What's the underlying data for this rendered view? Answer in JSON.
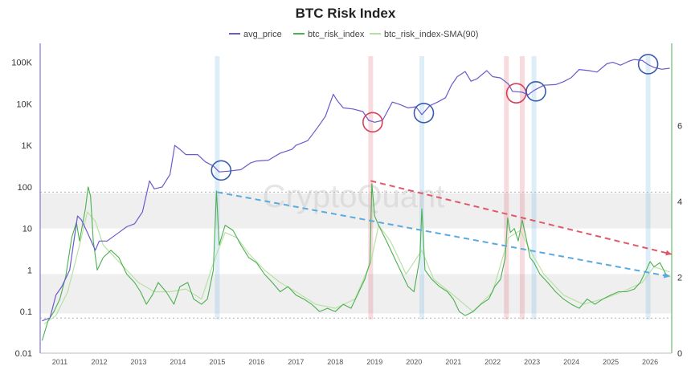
{
  "chart_data": {
    "type": "line",
    "title": "BTC Risk Index",
    "watermark": "CryptoQuant",
    "legend": [
      {
        "name": "avg_price",
        "color": "#6a5acd"
      },
      {
        "name": "btc_risk_index",
        "color": "#4caf50"
      },
      {
        "name": "btc_risk_index-SMA(90)",
        "color": "#b5dfa0"
      }
    ],
    "left_axis": {
      "scale": "log",
      "range": [
        0.01,
        200000
      ],
      "ticks": [
        "100K",
        "10K",
        "1K",
        "100",
        "10",
        "1",
        "0.1",
        "0.01"
      ],
      "tick_values": [
        100000,
        10000,
        1000,
        100,
        10,
        1,
        0.1,
        0.01
      ]
    },
    "right_axis": {
      "range": [
        0,
        8
      ],
      "ticks": [
        "6",
        "4",
        "2",
        "0"
      ],
      "tick_values": [
        6,
        4,
        2,
        0
      ]
    },
    "x_axis": {
      "range": [
        2010.5,
        2026.55
      ],
      "ticks": [
        "2011",
        "2012",
        "2013",
        "2014",
        "2015",
        "2016",
        "2017",
        "2018",
        "2019",
        "2020",
        "2021",
        "2022",
        "2023",
        "2024",
        "2025",
        "2026"
      ],
      "tick_values": [
        2011,
        2012,
        2013,
        2014,
        2015,
        2016,
        2017,
        2018,
        2019,
        2020,
        2021,
        2022,
        2023,
        2024,
        2025,
        2026
      ]
    },
    "bands": [
      {
        "from": 10,
        "to": 70
      },
      {
        "from": 0.09,
        "to": 0.8
      }
    ],
    "ref_lines": [
      75,
      0.07
    ],
    "vertical_highlights": [
      {
        "x": 2015.0,
        "color": "blue"
      },
      {
        "x": 2018.9,
        "color": "red"
      },
      {
        "x": 2020.2,
        "color": "blue"
      },
      {
        "x": 2022.35,
        "color": "red"
      },
      {
        "x": 2022.75,
        "color": "red"
      },
      {
        "x": 2023.05,
        "color": "blue"
      },
      {
        "x": 2025.95,
        "color": "blue"
      }
    ],
    "circles": [
      {
        "x": 2015.1,
        "y": 250,
        "color": "blue"
      },
      {
        "x": 2018.95,
        "y": 3600,
        "color": "red"
      },
      {
        "x": 2020.25,
        "y": 6000,
        "color": "blue"
      },
      {
        "x": 2022.6,
        "y": 18000,
        "color": "red"
      },
      {
        "x": 2023.1,
        "y": 20000,
        "color": "blue"
      },
      {
        "x": 2025.95,
        "y": 90000,
        "color": "blue"
      }
    ],
    "trend_lines": [
      {
        "color": "blue",
        "from": [
          2015.0,
          75
        ],
        "to": [
          2026.5,
          0.7
        ]
      },
      {
        "color": "red",
        "from": [
          2018.9,
          140
        ],
        "to": [
          2026.55,
          2.4
        ]
      }
    ],
    "series": [
      {
        "name": "avg_price",
        "axis": "left",
        "points": [
          [
            2010.55,
            0.06
          ],
          [
            2010.75,
            0.07
          ],
          [
            2010.9,
            0.25
          ],
          [
            2011.05,
            0.4
          ],
          [
            2011.25,
            1.0
          ],
          [
            2011.45,
            20
          ],
          [
            2011.55,
            16
          ],
          [
            2011.7,
            8
          ],
          [
            2011.9,
            3
          ],
          [
            2012.0,
            5
          ],
          [
            2012.2,
            5
          ],
          [
            2012.5,
            8
          ],
          [
            2012.7,
            11
          ],
          [
            2012.9,
            13
          ],
          [
            2013.1,
            25
          ],
          [
            2013.28,
            140
          ],
          [
            2013.4,
            90
          ],
          [
            2013.6,
            100
          ],
          [
            2013.8,
            200
          ],
          [
            2013.92,
            1000
          ],
          [
            2014.05,
            800
          ],
          [
            2014.2,
            600
          ],
          [
            2014.5,
            600
          ],
          [
            2014.7,
            400
          ],
          [
            2014.9,
            320
          ],
          [
            2015.05,
            230
          ],
          [
            2015.3,
            240
          ],
          [
            2015.6,
            260
          ],
          [
            2015.85,
            380
          ],
          [
            2016.0,
            420
          ],
          [
            2016.3,
            440
          ],
          [
            2016.6,
            650
          ],
          [
            2016.9,
            800
          ],
          [
            2017.0,
            1000
          ],
          [
            2017.3,
            1300
          ],
          [
            2017.55,
            2700
          ],
          [
            2017.75,
            5000
          ],
          [
            2017.95,
            17000
          ],
          [
            2018.05,
            12000
          ],
          [
            2018.2,
            8000
          ],
          [
            2018.45,
            7500
          ],
          [
            2018.7,
            6500
          ],
          [
            2018.85,
            4000
          ],
          [
            2019.0,
            3600
          ],
          [
            2019.2,
            4000
          ],
          [
            2019.45,
            11000
          ],
          [
            2019.6,
            10000
          ],
          [
            2019.85,
            8000
          ],
          [
            2020.05,
            8500
          ],
          [
            2020.2,
            5500
          ],
          [
            2020.4,
            9000
          ],
          [
            2020.6,
            11000
          ],
          [
            2020.8,
            14000
          ],
          [
            2020.95,
            28000
          ],
          [
            2021.1,
            45000
          ],
          [
            2021.3,
            60000
          ],
          [
            2021.45,
            35000
          ],
          [
            2021.6,
            40000
          ],
          [
            2021.85,
            63000
          ],
          [
            2022.0,
            45000
          ],
          [
            2022.2,
            42000
          ],
          [
            2022.4,
            30000
          ],
          [
            2022.5,
            20000
          ],
          [
            2022.75,
            19000
          ],
          [
            2022.9,
            16500
          ],
          [
            2023.05,
            21000
          ],
          [
            2023.3,
            28000
          ],
          [
            2023.6,
            29000
          ],
          [
            2023.8,
            34000
          ],
          [
            2024.0,
            43000
          ],
          [
            2024.2,
            67000
          ],
          [
            2024.45,
            63000
          ],
          [
            2024.65,
            58000
          ],
          [
            2024.9,
            92000
          ],
          [
            2025.05,
            100000
          ],
          [
            2025.25,
            85000
          ],
          [
            2025.45,
            105000
          ],
          [
            2025.6,
            117000
          ],
          [
            2025.8,
            110000
          ],
          [
            2025.95,
            88000
          ],
          [
            2026.1,
            75000
          ],
          [
            2026.3,
            68000
          ],
          [
            2026.5,
            72000
          ]
        ]
      },
      {
        "name": "btc_risk_index",
        "axis": "left",
        "points": [
          [
            2010.55,
            0.02
          ],
          [
            2010.7,
            0.06
          ],
          [
            2010.85,
            0.1
          ],
          [
            2011.0,
            0.2
          ],
          [
            2011.15,
            0.7
          ],
          [
            2011.3,
            6
          ],
          [
            2011.42,
            14
          ],
          [
            2011.5,
            5
          ],
          [
            2011.65,
            30
          ],
          [
            2011.72,
            100
          ],
          [
            2011.78,
            60
          ],
          [
            2011.85,
            5
          ],
          [
            2011.95,
            1.0
          ],
          [
            2012.1,
            2
          ],
          [
            2012.3,
            3
          ],
          [
            2012.5,
            2
          ],
          [
            2012.7,
            0.8
          ],
          [
            2012.9,
            0.5
          ],
          [
            2013.05,
            0.3
          ],
          [
            2013.2,
            0.15
          ],
          [
            2013.35,
            0.25
          ],
          [
            2013.5,
            0.5
          ],
          [
            2013.7,
            0.3
          ],
          [
            2013.9,
            0.15
          ],
          [
            2014.05,
            0.4
          ],
          [
            2014.25,
            0.5
          ],
          [
            2014.4,
            0.2
          ],
          [
            2014.6,
            0.15
          ],
          [
            2014.75,
            0.2
          ],
          [
            2014.9,
            1.0
          ],
          [
            2014.98,
            80
          ],
          [
            2015.05,
            4
          ],
          [
            2015.2,
            12
          ],
          [
            2015.4,
            9
          ],
          [
            2015.6,
            4
          ],
          [
            2015.8,
            2
          ],
          [
            2016.0,
            1.5
          ],
          [
            2016.2,
            0.8
          ],
          [
            2016.4,
            0.5
          ],
          [
            2016.6,
            0.3
          ],
          [
            2016.8,
            0.4
          ],
          [
            2017.0,
            0.25
          ],
          [
            2017.2,
            0.2
          ],
          [
            2017.4,
            0.15
          ],
          [
            2017.6,
            0.1
          ],
          [
            2017.8,
            0.12
          ],
          [
            2018.0,
            0.1
          ],
          [
            2018.2,
            0.15
          ],
          [
            2018.4,
            0.12
          ],
          [
            2018.6,
            0.3
          ],
          [
            2018.75,
            0.6
          ],
          [
            2018.88,
            1.5
          ],
          [
            2018.93,
            120
          ],
          [
            2019.0,
            20
          ],
          [
            2019.1,
            12
          ],
          [
            2019.3,
            5
          ],
          [
            2019.5,
            2
          ],
          [
            2019.7,
            0.8
          ],
          [
            2019.85,
            0.4
          ],
          [
            2020.0,
            0.3
          ],
          [
            2020.15,
            2
          ],
          [
            2020.2,
            30
          ],
          [
            2020.28,
            1
          ],
          [
            2020.45,
            0.6
          ],
          [
            2020.65,
            0.4
          ],
          [
            2020.85,
            0.3
          ],
          [
            2021.0,
            0.2
          ],
          [
            2021.15,
            0.1
          ],
          [
            2021.3,
            0.08
          ],
          [
            2021.5,
            0.1
          ],
          [
            2021.7,
            0.15
          ],
          [
            2021.9,
            0.2
          ],
          [
            2022.05,
            0.4
          ],
          [
            2022.2,
            0.6
          ],
          [
            2022.32,
            2
          ],
          [
            2022.38,
            18
          ],
          [
            2022.45,
            8
          ],
          [
            2022.55,
            10
          ],
          [
            2022.65,
            5
          ],
          [
            2022.75,
            16
          ],
          [
            2022.85,
            6
          ],
          [
            2022.95,
            2
          ],
          [
            2023.05,
            1.5
          ],
          [
            2023.2,
            0.8
          ],
          [
            2023.4,
            0.5
          ],
          [
            2023.6,
            0.3
          ],
          [
            2023.8,
            0.2
          ],
          [
            2024.0,
            0.15
          ],
          [
            2024.2,
            0.12
          ],
          [
            2024.4,
            0.2
          ],
          [
            2024.6,
            0.15
          ],
          [
            2024.8,
            0.2
          ],
          [
            2025.0,
            0.25
          ],
          [
            2025.2,
            0.3
          ],
          [
            2025.4,
            0.3
          ],
          [
            2025.6,
            0.35
          ],
          [
            2025.75,
            0.5
          ],
          [
            2025.9,
            1.0
          ],
          [
            2026.0,
            1.6
          ],
          [
            2026.1,
            1.2
          ],
          [
            2026.25,
            1.5
          ],
          [
            2026.4,
            0.8
          ],
          [
            2026.5,
            0.7
          ]
        ]
      },
      {
        "name": "btc_risk_index-SMA(90)",
        "axis": "left",
        "points": [
          [
            2010.6,
            0.05
          ],
          [
            2010.9,
            0.08
          ],
          [
            2011.2,
            0.3
          ],
          [
            2011.5,
            4
          ],
          [
            2011.7,
            25
          ],
          [
            2011.9,
            15
          ],
          [
            2012.1,
            4
          ],
          [
            2012.4,
            2
          ],
          [
            2012.7,
            1
          ],
          [
            2013.0,
            0.5
          ],
          [
            2013.4,
            0.3
          ],
          [
            2013.8,
            0.3
          ],
          [
            2014.2,
            0.35
          ],
          [
            2014.6,
            0.2
          ],
          [
            2014.95,
            2
          ],
          [
            2015.2,
            8
          ],
          [
            2015.5,
            6
          ],
          [
            2015.8,
            2.5
          ],
          [
            2016.2,
            1.0
          ],
          [
            2016.6,
            0.5
          ],
          [
            2017.0,
            0.3
          ],
          [
            2017.5,
            0.15
          ],
          [
            2018.0,
            0.12
          ],
          [
            2018.5,
            0.2
          ],
          [
            2018.9,
            1.5
          ],
          [
            2019.1,
            12
          ],
          [
            2019.4,
            5
          ],
          [
            2019.8,
            0.8
          ],
          [
            2020.2,
            3
          ],
          [
            2020.5,
            0.6
          ],
          [
            2021.0,
            0.25
          ],
          [
            2021.5,
            0.1
          ],
          [
            2022.0,
            0.3
          ],
          [
            2022.4,
            6
          ],
          [
            2022.7,
            9
          ],
          [
            2022.95,
            3
          ],
          [
            2023.3,
            0.8
          ],
          [
            2023.8,
            0.25
          ],
          [
            2024.3,
            0.15
          ],
          [
            2024.8,
            0.2
          ],
          [
            2025.3,
            0.3
          ],
          [
            2025.8,
            0.5
          ],
          [
            2026.1,
            1.2
          ],
          [
            2026.5,
            0.9
          ]
        ]
      }
    ]
  }
}
